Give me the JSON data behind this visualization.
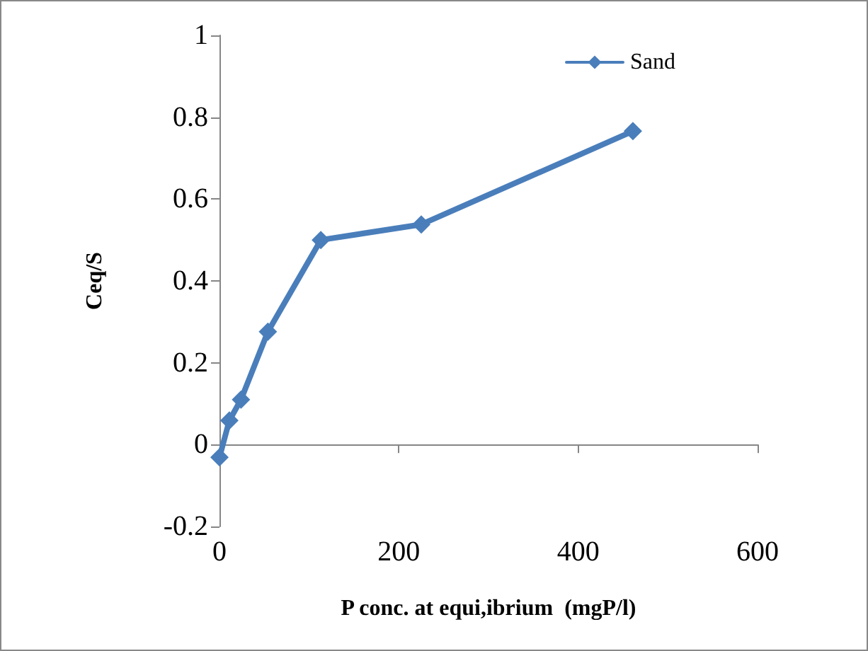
{
  "chart_data": {
    "type": "line",
    "xlabel": "P conc. at equi,ibrium  (mgP/l)",
    "ylabel": "Ceq/S",
    "x": [
      0,
      11,
      24,
      54,
      113,
      225,
      461
    ],
    "series": [
      {
        "name": "Sand",
        "color": "#4a7ebb",
        "values": [
          -0.031,
          0.059,
          0.11,
          0.276,
          0.5,
          0.538,
          0.766
        ]
      }
    ],
    "xlim": [
      0,
      600
    ],
    "xticks": [
      0,
      200,
      400,
      600
    ],
    "ylim": [
      -0.2,
      1
    ],
    "yticks": [
      -0.2,
      0,
      0.2,
      0.4,
      0.6,
      0.8,
      1
    ],
    "legend": "top right",
    "marker": "diamond",
    "line_style": "solid"
  }
}
